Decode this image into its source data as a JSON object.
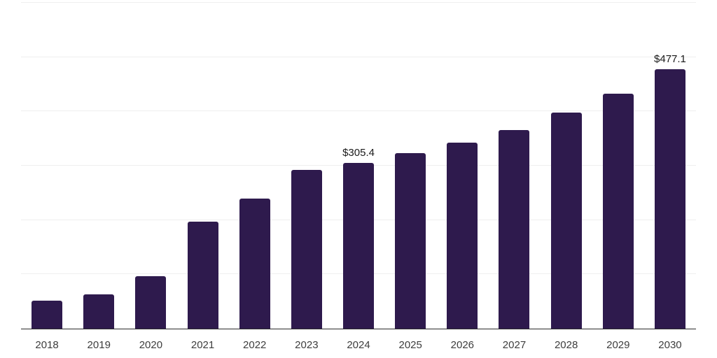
{
  "chart_data": {
    "type": "bar",
    "title": "",
    "xlabel": "",
    "ylabel": "",
    "categories": [
      "2018",
      "2019",
      "2020",
      "2021",
      "2022",
      "2023",
      "2024",
      "2025",
      "2026",
      "2027",
      "2028",
      "2029",
      "2030"
    ],
    "values": [
      51.9,
      63.0,
      96.1,
      197.5,
      239.9,
      292.3,
      305.4,
      322.9,
      342.2,
      365.3,
      397.4,
      433.2,
      477.1
    ],
    "data_labels": [
      "",
      "",
      "",
      "",
      "",
      "",
      "$305.4",
      "",
      "",
      "",
      "",
      "",
      "$477.1"
    ],
    "ylim": [
      0,
      600
    ],
    "gridline_step": 100,
    "y_tick_labels_visible": false,
    "grid": "horizontal",
    "legend": "none",
    "colors": {
      "bar": "#2e1a4d",
      "axis": "#2b2b2b",
      "gridline": "#efefef",
      "value_label": "#1a1a1a",
      "tick_label": "#3d3d3d",
      "background": "#ffffff"
    }
  }
}
